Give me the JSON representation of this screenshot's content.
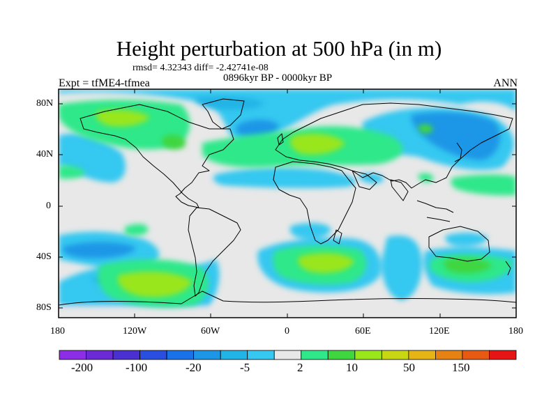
{
  "title": "Height perturbation at 500 hPa (in m)",
  "stats": "rmsd= 4.32343 diff= -2.42741e-08",
  "period": "0896kyr BP - 0000kyr BP",
  "experiment": "Expt = tfME4-tfmea",
  "season": "ANN",
  "lat_labels": [
    "80N",
    "40N",
    "0",
    "40S",
    "80S"
  ],
  "lon_labels": [
    "180",
    "120W",
    "60W",
    "0",
    "60E",
    "120E",
    "180"
  ],
  "colorbar": {
    "labels": [
      "-200",
      "-100",
      "-20",
      "-5",
      "2",
      "10",
      "50",
      "150"
    ],
    "colors": [
      "#8c2ee6",
      "#6b2ad6",
      "#4a30d0",
      "#2a4ee0",
      "#1a72e8",
      "#1d96e6",
      "#22b4e6",
      "#36c8f0",
      "#e8e8e8",
      "#2ee88a",
      "#40d640",
      "#9ae61a",
      "#c8d614",
      "#e6b414",
      "#e68214",
      "#e65a14",
      "#e61414"
    ]
  }
}
